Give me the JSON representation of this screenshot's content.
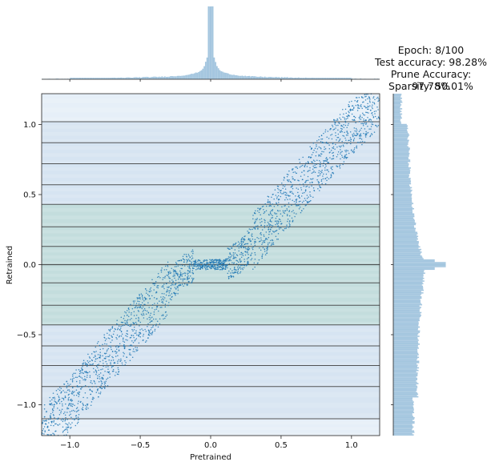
{
  "annotation": {
    "epoch": "Epoch: 8/100",
    "test_accuracy": "Test accuracy: 98.28%",
    "prune_accuracy": "Prune Accuracy: 97.78%",
    "sparsity": "Sparsity: 50.01%"
  },
  "chart_data": {
    "type": "scatter",
    "xlabel": "Pretrained",
    "ylabel": "Retrained",
    "xlim": [
      -1.2,
      1.2
    ],
    "ylim": [
      -1.22,
      1.22
    ],
    "xticks": [
      -1.0,
      -0.5,
      0.0,
      0.5,
      1.0
    ],
    "xtick_labels": [
      "−1.0",
      "−0.5",
      "0.0",
      "0.5",
      "1.0"
    ],
    "yticks": [
      -1.0,
      -0.5,
      0.0,
      0.5,
      1.0
    ],
    "ytick_labels": [
      "−1.0",
      "−0.5",
      "0.0",
      "0.5",
      "1.0"
    ],
    "horizontal_lines": [
      -1.1,
      -0.87,
      -0.72,
      -0.58,
      -0.43,
      -0.29,
      -0.13,
      0.0,
      0.13,
      0.27,
      0.43,
      0.57,
      0.72,
      0.87,
      1.02
    ],
    "scatter_band": {
      "description_points": [
        [
          -1.2,
          -1.2
        ],
        [
          -1.0,
          -1.0
        ],
        [
          -0.8,
          -0.75
        ],
        [
          -0.6,
          -0.52
        ],
        [
          -0.4,
          -0.28
        ],
        [
          -0.2,
          -0.05
        ],
        [
          -0.1,
          0.0
        ],
        [
          0.0,
          0.0
        ],
        [
          0.1,
          0.0
        ],
        [
          0.2,
          0.05
        ],
        [
          0.4,
          0.28
        ],
        [
          0.6,
          0.52
        ],
        [
          0.8,
          0.75
        ],
        [
          1.0,
          0.98
        ],
        [
          1.2,
          1.18
        ]
      ],
      "band_half_width": 0.2
    },
    "marginal_x": {
      "type": "histogram",
      "bins_from": -1.2,
      "bins_to": 1.2,
      "peak_at": 0.0,
      "peak_relative_height": 1.0,
      "base_relative_height": 0.02
    },
    "marginal_y": {
      "type": "histogram",
      "bins_from": -1.22,
      "bins_to": 1.22,
      "peak_at": 0.0,
      "peak_relative_height": 0.95,
      "upper_tail_level": 0.25,
      "lower_tail_level": 0.42
    },
    "colors": {
      "points": "#1f77b4",
      "marginal": "#a4c6df",
      "grid_line": "#3a3a3a",
      "band_light": "#e6eef7",
      "band_mid": "#c9dcee",
      "band_green": "#b7d7d4"
    },
    "grid": false,
    "legend": "none"
  }
}
